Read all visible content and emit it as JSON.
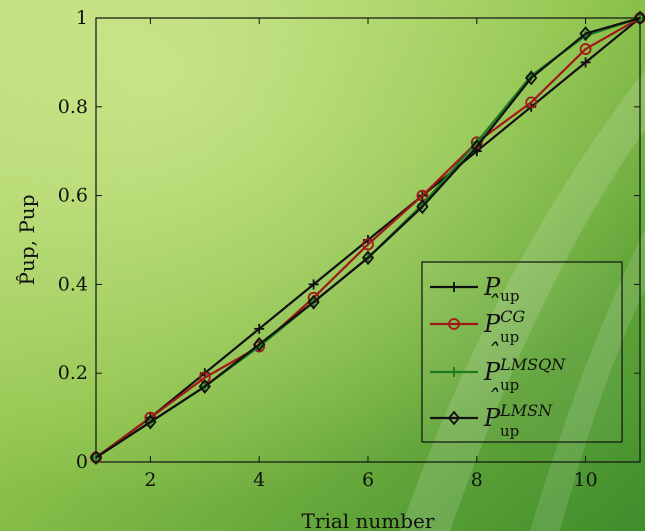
{
  "chart_data": {
    "type": "line",
    "xlabel": "Trial number",
    "ylabel": "P̂up, Pup",
    "xlim": [
      1,
      11
    ],
    "ylim": [
      0,
      1
    ],
    "x_ticks": [
      2,
      4,
      6,
      8,
      10
    ],
    "y_ticks": [
      0,
      0.2,
      0.4,
      0.6,
      0.8,
      1
    ],
    "y_tick_labels": [
      "0",
      "0.2",
      "0.4",
      "0.6",
      "0.8",
      "1"
    ],
    "grid": false,
    "legend_position": "bottom-right",
    "x": [
      1,
      2,
      3,
      4,
      5,
      6,
      7,
      8,
      9,
      10,
      11
    ],
    "series": [
      {
        "name": "Pup",
        "label_main": "P",
        "label_sub": "up",
        "label_sup": "",
        "hat": false,
        "color": "#111111",
        "marker": "plus",
        "values": [
          0.01,
          0.1,
          0.2,
          0.3,
          0.4,
          0.5,
          0.6,
          0.7,
          0.8,
          0.9,
          1.0
        ]
      },
      {
        "name": "P̂up^CG",
        "label_main": "P",
        "label_sub": "up",
        "label_sup": "CG",
        "hat": true,
        "color": "#a01818",
        "marker": "circle",
        "values": [
          0.01,
          0.1,
          0.19,
          0.26,
          0.37,
          0.49,
          0.6,
          0.72,
          0.81,
          0.93,
          1.0
        ]
      },
      {
        "name": "P̂up^LMSQN",
        "label_main": "P",
        "label_sub": "up",
        "label_sup": "LMSQN",
        "hat": true,
        "color": "#1e7a1e",
        "marker": "plus",
        "values": [
          0.01,
          0.09,
          0.17,
          0.26,
          0.36,
          0.46,
          0.58,
          0.72,
          0.87,
          0.96,
          1.0
        ]
      },
      {
        "name": "P̂up^LMSN",
        "label_main": "P",
        "label_sub": "up",
        "label_sup": "LMSN",
        "hat": true,
        "color": "#111111",
        "marker": "diamond",
        "values": [
          0.01,
          0.09,
          0.17,
          0.265,
          0.36,
          0.46,
          0.575,
          0.71,
          0.865,
          0.965,
          1.0
        ]
      }
    ]
  }
}
